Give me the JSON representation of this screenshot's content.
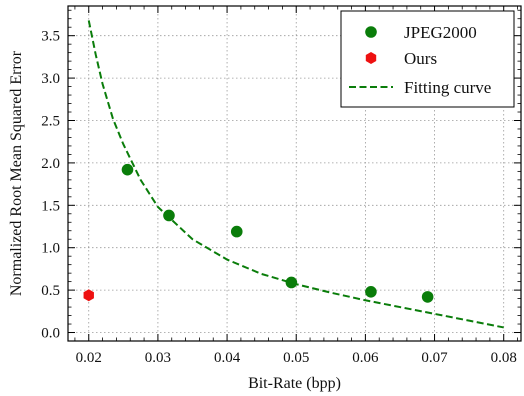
{
  "chart_data": {
    "type": "scatter",
    "xlabel": "Bit-Rate (bpp)",
    "ylabel": "Normalized Root Mean Squared Error",
    "xlim": [
      0.017,
      0.0825
    ],
    "ylim": [
      -0.1,
      3.85
    ],
    "x_ticks": [
      "0.02",
      "0.03",
      "0.04",
      "0.05",
      "0.06",
      "0.07",
      "0.08"
    ],
    "y_ticks": [
      "0.0",
      "0.5",
      "1.0",
      "1.5",
      "2.0",
      "2.5",
      "3.0",
      "3.5"
    ],
    "grid": true,
    "legend_position": "top-right",
    "series": [
      {
        "name": "JPEG2000",
        "kind": "marker",
        "marker": "circle",
        "color": "#0a7d0a",
        "points": [
          {
            "x": 0.0256,
            "y": 1.92
          },
          {
            "x": 0.0316,
            "y": 1.38
          },
          {
            "x": 0.0414,
            "y": 1.19
          },
          {
            "x": 0.0493,
            "y": 0.59
          },
          {
            "x": 0.0608,
            "y": 0.48
          },
          {
            "x": 0.069,
            "y": 0.42
          }
        ]
      },
      {
        "name": "Ours",
        "kind": "marker",
        "marker": "hexagon",
        "color": "#ee1111",
        "points": [
          {
            "x": 0.02,
            "y": 0.44
          }
        ]
      },
      {
        "name": "Fitting curve",
        "kind": "line",
        "style": "dashed",
        "color": "#0a7d0a",
        "points": [
          {
            "x": 0.02,
            "y": 3.68
          },
          {
            "x": 0.021,
            "y": 3.28
          },
          {
            "x": 0.022,
            "y": 2.93
          },
          {
            "x": 0.0235,
            "y": 2.52
          },
          {
            "x": 0.025,
            "y": 2.22
          },
          {
            "x": 0.0275,
            "y": 1.8
          },
          {
            "x": 0.03,
            "y": 1.48
          },
          {
            "x": 0.035,
            "y": 1.1
          },
          {
            "x": 0.04,
            "y": 0.86
          },
          {
            "x": 0.045,
            "y": 0.69
          },
          {
            "x": 0.05,
            "y": 0.57
          },
          {
            "x": 0.055,
            "y": 0.47
          },
          {
            "x": 0.06,
            "y": 0.38
          },
          {
            "x": 0.065,
            "y": 0.3
          },
          {
            "x": 0.07,
            "y": 0.22
          },
          {
            "x": 0.075,
            "y": 0.14
          },
          {
            "x": 0.08,
            "y": 0.06
          }
        ]
      }
    ]
  }
}
